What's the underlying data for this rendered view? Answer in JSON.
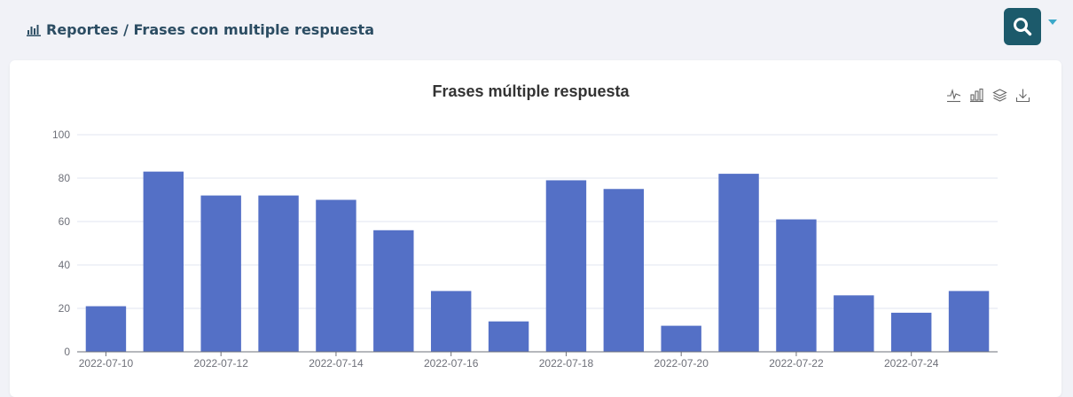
{
  "header": {
    "breadcrumb": "Reportes / Frases con multiple respuesta",
    "breadcrumb_icon": "bar-chart-icon",
    "search_icon": "search-icon",
    "accent": "#1c5a6b"
  },
  "toolbox": {
    "items": [
      {
        "icon": "line-chart-icon"
      },
      {
        "icon": "bar-chart-toggle-icon"
      },
      {
        "icon": "stack-icon"
      },
      {
        "icon": "download-icon"
      }
    ]
  },
  "chart_data": {
    "type": "bar",
    "title": "Frases múltiple respuesta",
    "xlabel": "",
    "ylabel": "",
    "ylim": [
      0,
      100
    ],
    "y_ticks": [
      0,
      20,
      40,
      60,
      80,
      100
    ],
    "x_tick_labels": [
      "2022-07-10",
      "2022-07-12",
      "2022-07-14",
      "2022-07-16",
      "2022-07-18",
      "2022-07-20",
      "2022-07-22",
      "2022-07-24"
    ],
    "categories": [
      "2022-07-10",
      "2022-07-11",
      "2022-07-12",
      "2022-07-13",
      "2022-07-14",
      "2022-07-15",
      "2022-07-16",
      "2022-07-17",
      "2022-07-18",
      "2022-07-19",
      "2022-07-20",
      "2022-07-21",
      "2022-07-22",
      "2022-07-23",
      "2022-07-24",
      "2022-07-25"
    ],
    "values": [
      21,
      83,
      72,
      72,
      70,
      56,
      28,
      14,
      79,
      75,
      12,
      82,
      61,
      26,
      18,
      28
    ],
    "bar_color": "#5470c6",
    "grid": true
  }
}
